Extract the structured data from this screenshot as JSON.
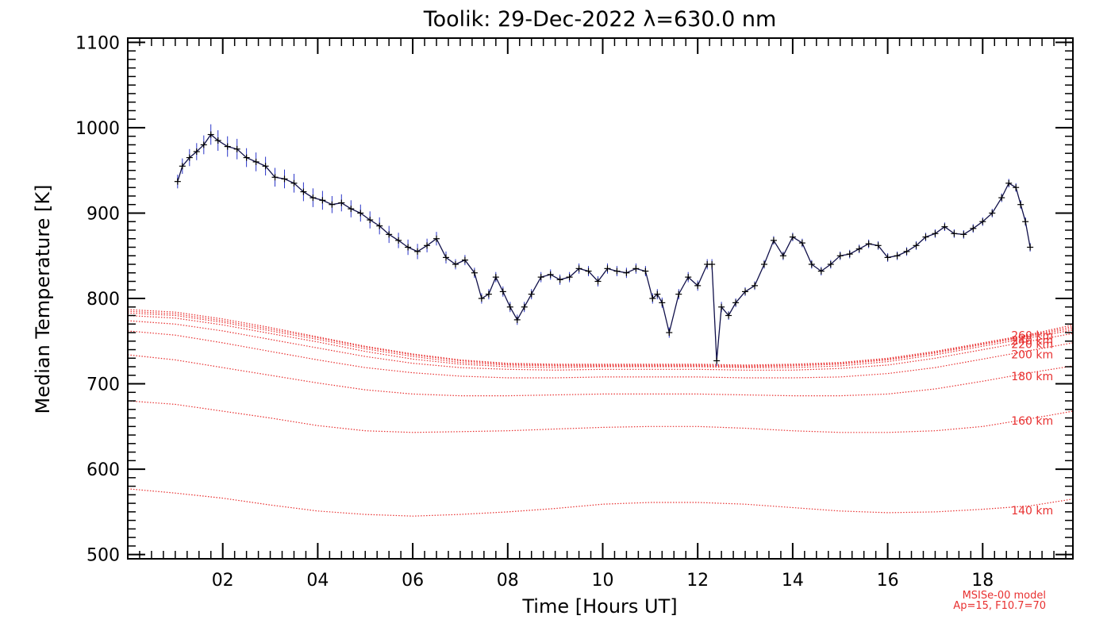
{
  "chart_data": {
    "type": "line",
    "title": "Toolik: 29-Dec-2022 λ=630.0 nm",
    "xlabel": "Time [Hours UT]",
    "ylabel": "Median Temperature [K]",
    "xlim": [
      0.0,
      19.9
    ],
    "ylim": [
      495,
      1105
    ],
    "x_ticks": [
      2,
      4,
      6,
      8,
      10,
      12,
      14,
      16,
      18
    ],
    "x_tick_labels": [
      "02",
      "04",
      "06",
      "08",
      "10",
      "12",
      "14",
      "16",
      "18"
    ],
    "y_ticks": [
      500,
      600,
      700,
      800,
      900,
      1000,
      1100
    ],
    "y_tick_labels": [
      "500",
      "600",
      "700",
      "800",
      "900",
      "1000",
      "1100"
    ],
    "grid": false,
    "series": [
      {
        "kind": "measured",
        "color": "#10104a",
        "error_color": "#2a35c8",
        "x": [
          1.05,
          1.15,
          1.3,
          1.45,
          1.6,
          1.75,
          1.9,
          2.1,
          2.3,
          2.5,
          2.7,
          2.9,
          3.1,
          3.3,
          3.5,
          3.7,
          3.9,
          4.1,
          4.3,
          4.5,
          4.7,
          4.9,
          5.1,
          5.3,
          5.5,
          5.7,
          5.9,
          6.1,
          6.3,
          6.5,
          6.7,
          6.9,
          7.1,
          7.3,
          7.45,
          7.6,
          7.75,
          7.9,
          8.05,
          8.2,
          8.35,
          8.5,
          8.7,
          8.9,
          9.1,
          9.3,
          9.5,
          9.7,
          9.9,
          10.1,
          10.3,
          10.5,
          10.7,
          10.9,
          11.05,
          11.15,
          11.25,
          11.4,
          11.6,
          11.8,
          12.0,
          12.2,
          12.3,
          12.4,
          12.5,
          12.65,
          12.8,
          13.0,
          13.2,
          13.4,
          13.6,
          13.8,
          14.0,
          14.2,
          14.4,
          14.6,
          14.8,
          15.0,
          15.2,
          15.4,
          15.6,
          15.8,
          16.0,
          16.2,
          16.4,
          16.6,
          16.8,
          17.0,
          17.2,
          17.4,
          17.6,
          17.8,
          18.0,
          18.2,
          18.4,
          18.55,
          18.7,
          18.8,
          18.9,
          19.0
        ],
        "y": [
          937,
          955,
          965,
          972,
          980,
          992,
          985,
          978,
          975,
          965,
          960,
          955,
          942,
          940,
          935,
          925,
          918,
          915,
          910,
          912,
          905,
          900,
          892,
          885,
          875,
          868,
          860,
          855,
          862,
          870,
          848,
          840,
          845,
          830,
          800,
          805,
          825,
          808,
          790,
          775,
          790,
          805,
          825,
          828,
          822,
          825,
          835,
          832,
          820,
          835,
          832,
          830,
          835,
          832,
          800,
          805,
          795,
          760,
          805,
          825,
          815,
          840,
          840,
          727,
          790,
          780,
          795,
          808,
          815,
          840,
          868,
          850,
          872,
          865,
          840,
          832,
          840,
          850,
          852,
          858,
          864,
          862,
          848,
          850,
          855,
          862,
          872,
          876,
          884,
          876,
          875,
          882,
          890,
          900,
          918,
          935,
          930,
          910,
          890,
          860
        ],
        "err": [
          8,
          9,
          10,
          10,
          11,
          12,
          12,
          12,
          12,
          11,
          11,
          11,
          11,
          11,
          11,
          11,
          11,
          11,
          10,
          10,
          10,
          10,
          10,
          10,
          10,
          9,
          9,
          9,
          8,
          8,
          7,
          6,
          6,
          6,
          6,
          6,
          6,
          6,
          6,
          6,
          6,
          6,
          6,
          6,
          6,
          6,
          6,
          6,
          6,
          6,
          6,
          6,
          6,
          6,
          6,
          6,
          6,
          6,
          6,
          6,
          6,
          6,
          6,
          6,
          6,
          5,
          5,
          5,
          5,
          5,
          5,
          5,
          5,
          5,
          5,
          5,
          5,
          5,
          5,
          5,
          5,
          5,
          5,
          5,
          5,
          5,
          5,
          5,
          5,
          5,
          5,
          5,
          5,
          5,
          5,
          5,
          5,
          5,
          5,
          5
        ]
      },
      {
        "kind": "model",
        "name": "140 km",
        "color": "#e83030",
        "x": [
          0.0,
          1.0,
          2.0,
          3.0,
          4.0,
          5.0,
          6.0,
          7.0,
          8.0,
          9.0,
          10.0,
          11.0,
          12.0,
          13.0,
          14.0,
          15.0,
          16.0,
          17.0,
          18.0,
          19.0,
          19.9
        ],
        "y": [
          577,
          572,
          566,
          558,
          551,
          547,
          545,
          547,
          550,
          554,
          559,
          561,
          561,
          559,
          555,
          551,
          549,
          550,
          553,
          557,
          565
        ]
      },
      {
        "kind": "model",
        "name": "160 km",
        "color": "#e83030",
        "x": [
          0.0,
          1.0,
          2.0,
          3.0,
          4.0,
          5.0,
          6.0,
          7.0,
          8.0,
          9.0,
          10.0,
          11.0,
          12.0,
          13.0,
          14.0,
          15.0,
          16.0,
          17.0,
          18.0,
          19.0,
          19.9
        ],
        "y": [
          680,
          676,
          668,
          660,
          651,
          645,
          643,
          644,
          645,
          647,
          649,
          650,
          650,
          648,
          645,
          643,
          643,
          645,
          650,
          659,
          668
        ]
      },
      {
        "kind": "model",
        "name": "180 km",
        "color": "#e83030",
        "x": [
          0.0,
          1.0,
          2.0,
          3.0,
          4.0,
          5.0,
          6.0,
          7.0,
          8.0,
          9.0,
          10.0,
          11.0,
          12.0,
          13.0,
          14.0,
          15.0,
          16.0,
          17.0,
          18.0,
          19.0,
          19.9
        ],
        "y": [
          734,
          728,
          719,
          710,
          701,
          693,
          688,
          686,
          686,
          687,
          688,
          688,
          688,
          687,
          686,
          686,
          688,
          694,
          703,
          713,
          721
        ]
      },
      {
        "kind": "model",
        "name": "200 km",
        "color": "#e83030",
        "x": [
          0.0,
          1.0,
          2.0,
          3.0,
          4.0,
          5.0,
          6.0,
          7.0,
          8.0,
          9.0,
          10.0,
          11.0,
          12.0,
          13.0,
          14.0,
          15.0,
          16.0,
          17.0,
          18.0,
          19.0,
          19.9
        ],
        "y": [
          762,
          757,
          748,
          738,
          728,
          719,
          713,
          709,
          707,
          707,
          708,
          708,
          708,
          707,
          707,
          708,
          712,
          719,
          729,
          739,
          748
        ]
      },
      {
        "kind": "model",
        "name": "220 km",
        "color": "#e83030",
        "x": [
          0.0,
          1.0,
          2.0,
          3.0,
          4.0,
          5.0,
          6.0,
          7.0,
          8.0,
          9.0,
          10.0,
          11.0,
          12.0,
          13.0,
          14.0,
          15.0,
          16.0,
          17.0,
          18.0,
          19.0,
          19.9
        ],
        "y": [
          774,
          770,
          762,
          752,
          742,
          732,
          724,
          719,
          717,
          716,
          717,
          717,
          717,
          716,
          716,
          718,
          722,
          730,
          740,
          750,
          759
        ]
      },
      {
        "kind": "model",
        "name": "240 km",
        "color": "#e83030",
        "x": [
          0.0,
          1.0,
          2.0,
          3.0,
          4.0,
          5.0,
          6.0,
          7.0,
          8.0,
          9.0,
          10.0,
          11.0,
          12.0,
          13.0,
          14.0,
          15.0,
          16.0,
          17.0,
          18.0,
          19.0,
          19.9
        ],
        "y": [
          780,
          777,
          769,
          759,
          749,
          738,
          729,
          723,
          720,
          719,
          720,
          720,
          720,
          719,
          719,
          721,
          726,
          734,
          744,
          754,
          763
        ]
      },
      {
        "kind": "model",
        "name": "260 km",
        "color": "#e83030",
        "x": [
          0.0,
          1.0,
          2.0,
          3.0,
          4.0,
          5.0,
          6.0,
          7.0,
          8.0,
          9.0,
          10.0,
          11.0,
          12.0,
          13.0,
          14.0,
          15.0,
          16.0,
          17.0,
          18.0,
          19.0,
          19.9
        ],
        "y": [
          783,
          780,
          772,
          762,
          752,
          741,
          732,
          725,
          722,
          721,
          721,
          721,
          721,
          720,
          721,
          723,
          728,
          736,
          746,
          756,
          765
        ]
      },
      {
        "kind": "model",
        "name": "",
        "color": "#e83030",
        "x": [
          0.0,
          1.0,
          2.0,
          3.0,
          4.0,
          5.0,
          6.0,
          7.0,
          8.0,
          9.0,
          10.0,
          11.0,
          12.0,
          13.0,
          14.0,
          15.0,
          16.0,
          17.0,
          18.0,
          19.0,
          19.9
        ],
        "y": [
          785,
          782,
          774,
          764,
          754,
          743,
          734,
          727,
          723,
          722,
          722,
          722,
          722,
          721,
          722,
          724,
          729,
          737,
          747,
          757,
          767
        ]
      },
      {
        "kind": "model",
        "name": "",
        "color": "#e83030",
        "x": [
          0.0,
          1.0,
          2.0,
          3.0,
          4.0,
          5.0,
          6.0,
          7.0,
          8.0,
          9.0,
          10.0,
          11.0,
          12.0,
          13.0,
          14.0,
          15.0,
          16.0,
          17.0,
          18.0,
          19.0,
          19.9
        ],
        "y": [
          787,
          784,
          776,
          766,
          755,
          744,
          735,
          728,
          724,
          723,
          723,
          723,
          723,
          722,
          723,
          725,
          730,
          738,
          748,
          758,
          769
        ]
      }
    ],
    "alt_labels": [
      {
        "text": "140 km",
        "x": 18.6,
        "y": 547
      },
      {
        "text": "160 km",
        "x": 18.6,
        "y": 652
      },
      {
        "text": "180 km",
        "x": 18.6,
        "y": 704
      },
      {
        "text": "200 km",
        "x": 18.6,
        "y": 730
      },
      {
        "text": "220 km",
        "x": 18.6,
        "y": 742
      },
      {
        "text": "240 km",
        "x": 18.6,
        "y": 746
      },
      {
        "text": "260 km",
        "x": 18.6,
        "y": 752
      }
    ],
    "annotations": [
      "MSISe-00 model",
      "Ap=15, F10.7=70"
    ]
  }
}
